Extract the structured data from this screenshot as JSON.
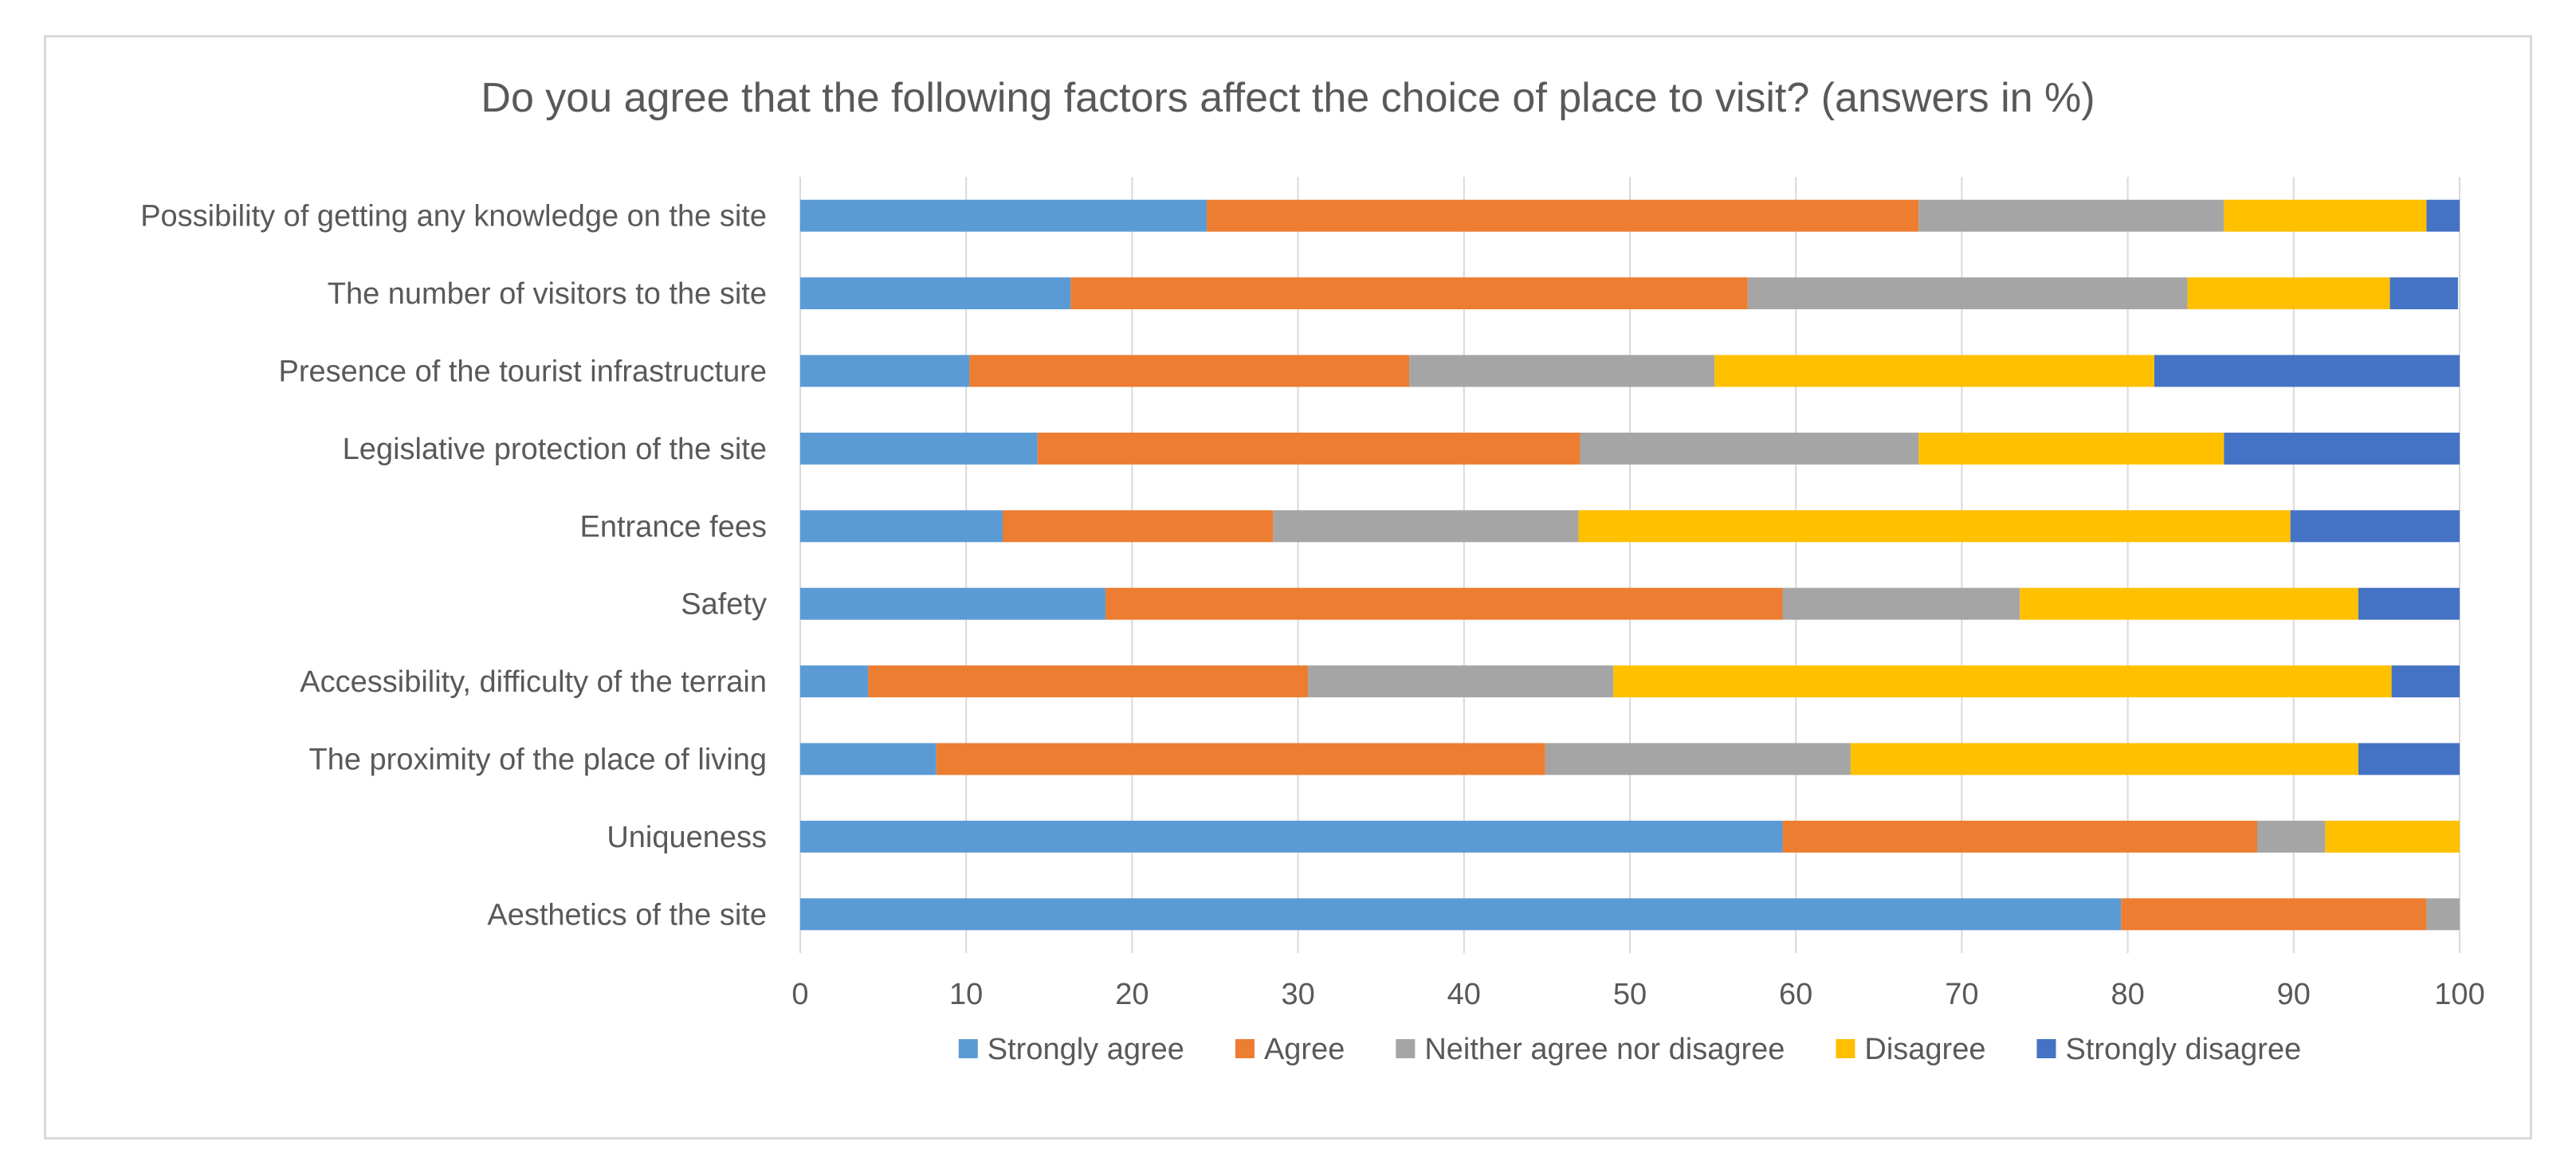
{
  "chart_data": {
    "type": "bar",
    "orientation": "horizontal",
    "stacked": true,
    "title": "Do you agree that the following factors affect the choice of place to visit? (answers in %)",
    "xlabel": "",
    "ylabel": "",
    "xlim": [
      0,
      100
    ],
    "x_ticks": [
      "0",
      "10",
      "20",
      "30",
      "40",
      "50",
      "60",
      "70",
      "80",
      "90",
      "100"
    ],
    "grid": true,
    "legend_position": "bottom",
    "categories": [
      "Possibility of getting any knowledge on the site",
      "The number of visitors to the site",
      "Presence of the tourist infrastructure",
      "Legislative protection of the site",
      "Entrance fees",
      "Safety",
      "Accessibility, difficulty of the terrain",
      "The proximity of the place of living",
      "Uniqueness",
      "Aesthetics of the site"
    ],
    "series": [
      {
        "name": "Strongly agree",
        "color": "#5B9BD5",
        "values": [
          24.5,
          16.3,
          10.2,
          14.3,
          12.2,
          18.4,
          4.1,
          8.2,
          59.2,
          79.6
        ]
      },
      {
        "name": "Agree",
        "color": "#ED7D31",
        "values": [
          42.9,
          40.8,
          26.5,
          32.7,
          16.3,
          40.8,
          26.5,
          36.7,
          28.6,
          18.4
        ]
      },
      {
        "name": "Neither agree nor disagree",
        "color": "#A5A5A5",
        "values": [
          18.4,
          26.5,
          18.4,
          20.4,
          18.4,
          14.3,
          18.4,
          18.4,
          4.1,
          2.0
        ]
      },
      {
        "name": "Disagree",
        "color": "#FFC000",
        "values": [
          12.2,
          12.2,
          26.5,
          18.4,
          42.9,
          20.4,
          46.9,
          30.6,
          8.1,
          0
        ]
      },
      {
        "name": "Strongly disagree",
        "color": "#4472C4",
        "values": [
          2.0,
          4.1,
          18.4,
          14.3,
          10.2,
          6.1,
          4.1,
          6.1,
          0,
          0
        ]
      }
    ]
  }
}
